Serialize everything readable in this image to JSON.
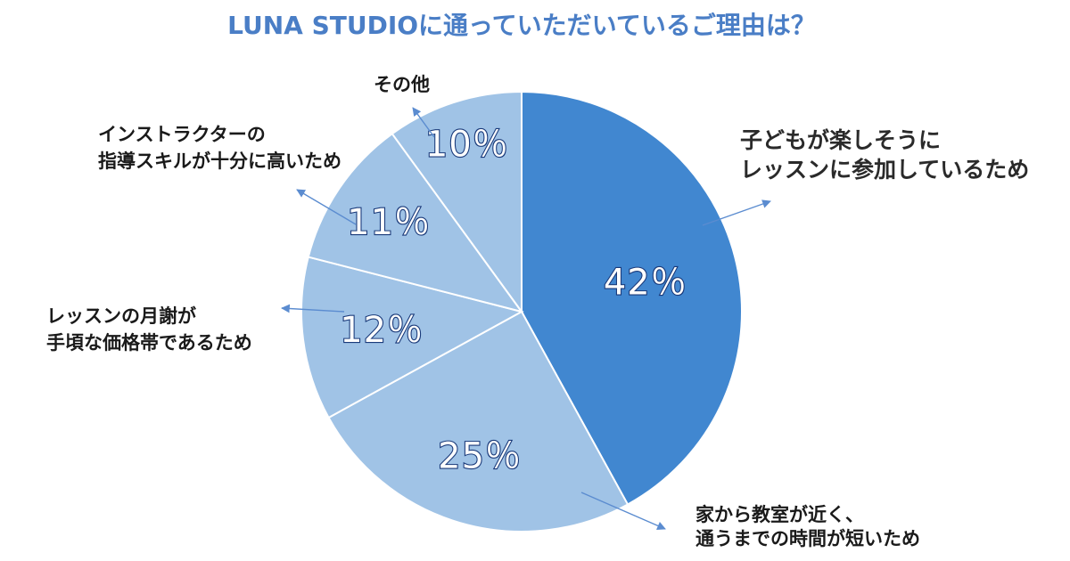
{
  "chart_data": {
    "type": "pie",
    "title": "LUNA STUDIOに通っていただいているご理由は？",
    "start_angle_deg": 0,
    "direction": "clockwise",
    "slices": [
      {
        "label_lines": [
          "子どもが楽しそうに",
          "レッスンに参加しているため"
        ],
        "value": 42,
        "value_label": "42％",
        "color": "#4187d0",
        "emphasized": true
      },
      {
        "label_lines": [
          "家から教室が近く、",
          "通うまでの時間が短いため"
        ],
        "value": 25,
        "value_label": "25％",
        "color": "#a0c3e6",
        "emphasized": false
      },
      {
        "label_lines": [
          "レッスンの月謝が",
          "手頃な価格帯であるため"
        ],
        "value": 12,
        "value_label": "12％",
        "color": "#a0c3e6",
        "emphasized": false
      },
      {
        "label_lines": [
          "インストラクターの",
          "指導スキルが十分に高いため"
        ],
        "value": 11,
        "value_label": "11％",
        "color": "#a0c3e6",
        "emphasized": false
      },
      {
        "label_lines": [
          "その他"
        ],
        "value": 10,
        "value_label": "10％",
        "color": "#a0c3e6",
        "emphasized": false
      }
    ],
    "slice_border_color": "#ffffff",
    "leader_color": "#5b8cd0"
  }
}
